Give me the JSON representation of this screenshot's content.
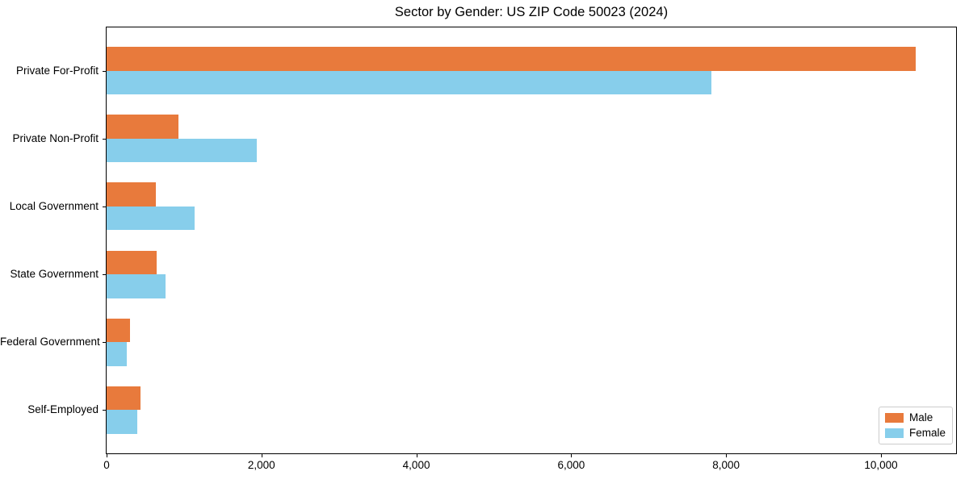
{
  "chart_data": {
    "type": "bar",
    "orientation": "horizontal",
    "title": "Sector by Gender: US ZIP Code 50023 (2024)",
    "categories": [
      "Private For-Profit",
      "Private Non-Profit",
      "Local Government",
      "State Government",
      "Federal Government",
      "Self-Employed"
    ],
    "series": [
      {
        "name": "Male",
        "color": "#E87A3C",
        "values": [
          10450,
          925,
          640,
          650,
          300,
          440
        ]
      },
      {
        "name": "Female",
        "color": "#87CEEB",
        "values": [
          7815,
          1935,
          1135,
          760,
          265,
          400
        ]
      }
    ],
    "xlim": [
      0,
      10970
    ],
    "x_ticks": [
      {
        "value": 0,
        "label": "0"
      },
      {
        "value": 2000,
        "label": "2,000"
      },
      {
        "value": 4000,
        "label": "4,000"
      },
      {
        "value": 6000,
        "label": "6,000"
      },
      {
        "value": 8000,
        "label": "8,000"
      },
      {
        "value": 10000,
        "label": "10,000"
      }
    ],
    "xlabel": "",
    "ylabel": "",
    "grid": false,
    "legend": {
      "position": "lower right",
      "entries": [
        "Male",
        "Female"
      ]
    }
  }
}
